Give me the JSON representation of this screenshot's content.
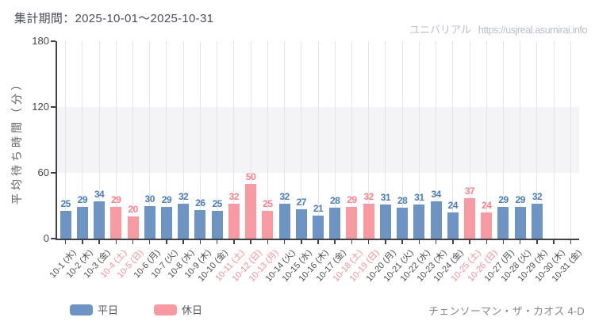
{
  "header": {
    "period_label": "集計期間：2025-10-01～2025-10-31",
    "watermark_name": "ユニバリアル",
    "watermark_url": "https://usjreal.asumirai.info"
  },
  "footer": {
    "attraction": "チェンソーマン・ザ・カオス 4-D"
  },
  "colors": {
    "weekday_bar": "#6d94c2",
    "weekday_label": "#4a7db8",
    "holiday_bar": "#f999a1",
    "holiday_label": "#f8828c",
    "xlabel_weekday": "#4a4c52",
    "xlabel_holiday": "#f48f98",
    "band": "#f4f4f6",
    "gridline": "#e4e5e9",
    "axis": "#3f4146"
  },
  "chart_data": {
    "type": "bar",
    "title": "集計期間：2025-10-01～2025-10-31",
    "xlabel": "",
    "ylabel": "平均待ち時間（分）",
    "ylim": [
      0,
      180
    ],
    "yticks": [
      0,
      60,
      120,
      180
    ],
    "shaded_band_y": [
      60,
      120
    ],
    "grid": "vertical line per day",
    "legend_position": "bottom-left",
    "legend": [
      {
        "label": "平日",
        "key": "weekday"
      },
      {
        "label": "休日",
        "key": "holiday"
      }
    ],
    "categories": [
      "10-1 (水)",
      "10-2 (木)",
      "10-3 (金)",
      "10-4 (土)",
      "10-5 (日)",
      "10-6 (月)",
      "10-7 (火)",
      "10-8 (水)",
      "10-9 (木)",
      "10-10 (金)",
      "10-11 (土)",
      "10-12 (日)",
      "10-13 (月)",
      "10-14 (火)",
      "10-15 (水)",
      "10-16 (木)",
      "10-17 (金)",
      "10-18 (土)",
      "10-19 (日)",
      "10-20 (月)",
      "10-21 (火)",
      "10-22 (水)",
      "10-23 (木)",
      "10-24 (金)",
      "10-25 (土)",
      "10-26 (日)",
      "10-27 (月)",
      "10-28 (火)",
      "10-29 (水)",
      "10-30 (木)",
      "10-31 (金)"
    ],
    "values": [
      25,
      29,
      34,
      29,
      20,
      30,
      29,
      32,
      26,
      25,
      32,
      50,
      25,
      32,
      27,
      21,
      28,
      29,
      32,
      31,
      28,
      31,
      34,
      24,
      37,
      24,
      29,
      29,
      32,
      null,
      null
    ],
    "day_types": [
      "weekday",
      "weekday",
      "weekday",
      "holiday",
      "holiday",
      "weekday",
      "weekday",
      "weekday",
      "weekday",
      "weekday",
      "holiday",
      "holiday",
      "holiday",
      "weekday",
      "weekday",
      "weekday",
      "weekday",
      "holiday",
      "holiday",
      "weekday",
      "weekday",
      "weekday",
      "weekday",
      "weekday",
      "holiday",
      "holiday",
      "weekday",
      "weekday",
      "weekday",
      "weekday",
      "weekday"
    ]
  }
}
